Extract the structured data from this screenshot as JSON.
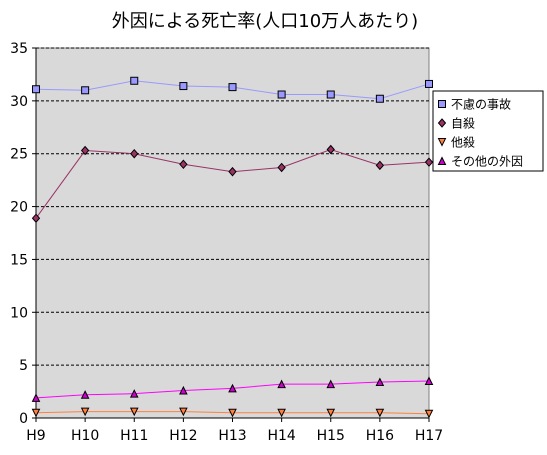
{
  "chart_data": {
    "type": "line",
    "title": "外因による死亡率(人口10万人あたり)",
    "categories": [
      "H9",
      "H10",
      "H11",
      "H12",
      "H13",
      "H14",
      "H15",
      "H16",
      "H17"
    ],
    "ylim": [
      0,
      35
    ],
    "yticks": [
      0,
      5,
      10,
      15,
      20,
      25,
      30,
      35
    ],
    "grid": true,
    "legend_position": "right",
    "series": [
      {
        "name": "不慮の事故",
        "marker": "square",
        "color": "#9999ff",
        "marker_color": "#9999ff",
        "values": [
          31.1,
          31.0,
          31.9,
          31.4,
          31.3,
          30.6,
          30.6,
          30.2,
          31.6
        ]
      },
      {
        "name": "自殺",
        "marker": "diamond",
        "color": "#993366",
        "marker_color": "#993366",
        "values": [
          18.9,
          25.3,
          25.0,
          24.0,
          23.3,
          23.7,
          25.4,
          23.9,
          24.2
        ]
      },
      {
        "name": "他殺",
        "marker": "triangle-down",
        "color": "#ff8040",
        "marker_color": "#ff8040",
        "values": [
          0.5,
          0.6,
          0.6,
          0.6,
          0.5,
          0.5,
          0.5,
          0.5,
          0.4
        ]
      },
      {
        "name": "その他の外因",
        "marker": "triangle-up",
        "color": "#ff00ff",
        "marker_color": "#cc00cc",
        "values": [
          1.9,
          2.2,
          2.3,
          2.6,
          2.8,
          3.2,
          3.2,
          3.4,
          3.5
        ]
      }
    ],
    "colors": {
      "plot_background": "#d9d9d9",
      "grid": "#000000"
    }
  }
}
